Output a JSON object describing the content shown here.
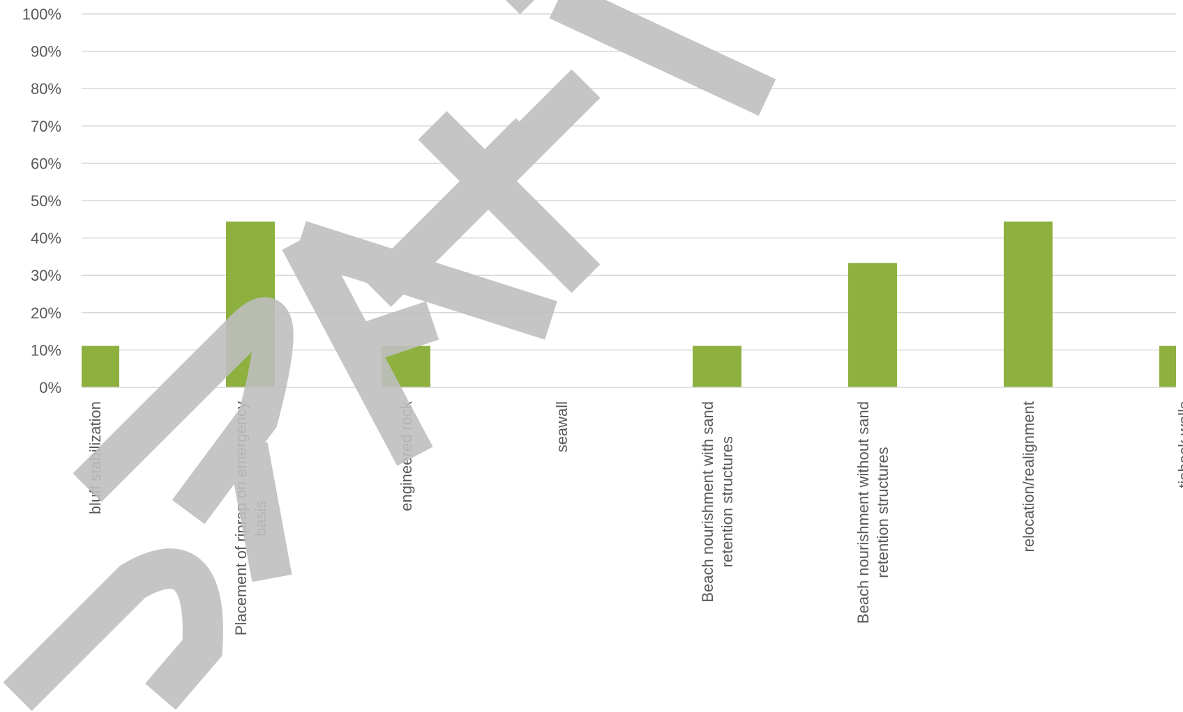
{
  "chart_data": {
    "type": "bar",
    "title": "",
    "xlabel": "",
    "ylabel": "",
    "ylim": [
      0,
      1
    ],
    "y_ticks": [
      "0%",
      "10%",
      "20%",
      "30%",
      "40%",
      "50%",
      "60%",
      "70%",
      "80%",
      "90%",
      "100%"
    ],
    "grid": true,
    "legend": "none",
    "categories": [
      "bluff stabilization",
      "Placement of riprap on emergency basis",
      "engineered rock",
      "seawall",
      "Beach nourishment with sand retention structures",
      "Beach nourishment without sand retention structures",
      "relocation/realignment",
      "tieback walls"
    ],
    "category_lines": [
      [
        "bluff stabilization"
      ],
      [
        "Placement of riprap on emergency",
        "basis"
      ],
      [
        "engineered rock"
      ],
      [
        "seawall"
      ],
      [
        "Beach nourishment with sand",
        "retention structures"
      ],
      [
        "Beach nourishment without sand",
        "retention structures"
      ],
      [
        "relocation/realignment"
      ],
      [
        "tieback walls"
      ]
    ],
    "values": [
      0.111,
      0.444,
      0.111,
      0.0,
      0.111,
      0.333,
      0.444,
      0.111
    ],
    "bar_color": "#8db03f",
    "gridline_color": "#d9d9d9",
    "text_color": "#595959"
  },
  "watermark": {
    "text": "DRAFT",
    "color": "#bfbfbf"
  }
}
